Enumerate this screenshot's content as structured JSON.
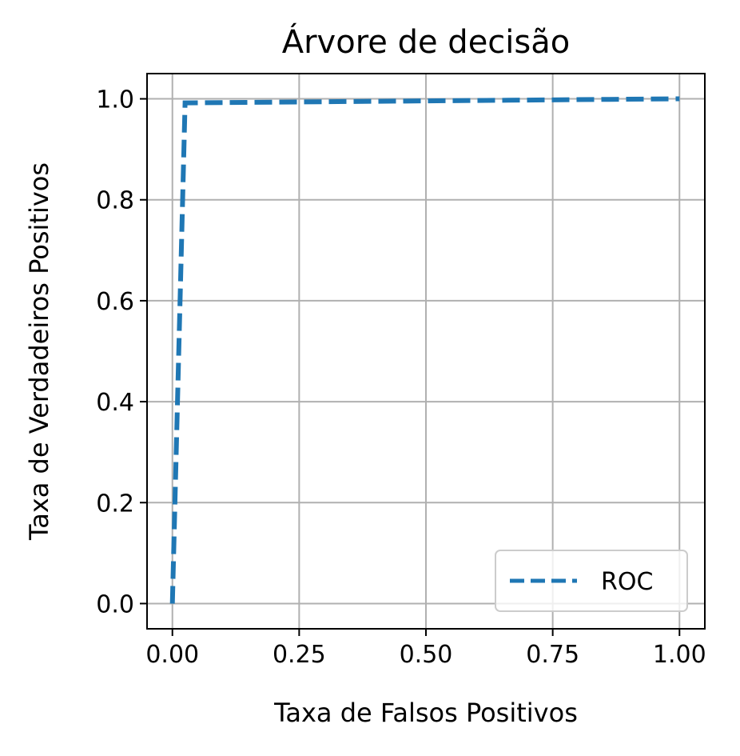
{
  "chart_data": {
    "type": "line",
    "title": "Árvore de decisão",
    "xlabel": "Taxa de Falsos Positivos",
    "ylabel": "Taxa de Verdadeiros Positivos",
    "xlim": [
      -0.05,
      1.05
    ],
    "ylim": [
      -0.05,
      1.05
    ],
    "xticks": [
      0.0,
      0.25,
      0.5,
      0.75,
      1.0
    ],
    "xtick_labels": [
      "0.00",
      "0.25",
      "0.50",
      "0.75",
      "1.00"
    ],
    "yticks": [
      0.0,
      0.2,
      0.4,
      0.6,
      0.8,
      1.0
    ],
    "ytick_labels": [
      "0.0",
      "0.2",
      "0.4",
      "0.6",
      "0.8",
      "1.0"
    ],
    "grid": true,
    "legend_position": "lower-right",
    "series": [
      {
        "name": "ROC",
        "color": "#1f77b4",
        "line_style": "dashed",
        "x": [
          0.0,
          0.025,
          1.0
        ],
        "y": [
          0.0,
          0.992,
          1.0
        ]
      }
    ]
  }
}
